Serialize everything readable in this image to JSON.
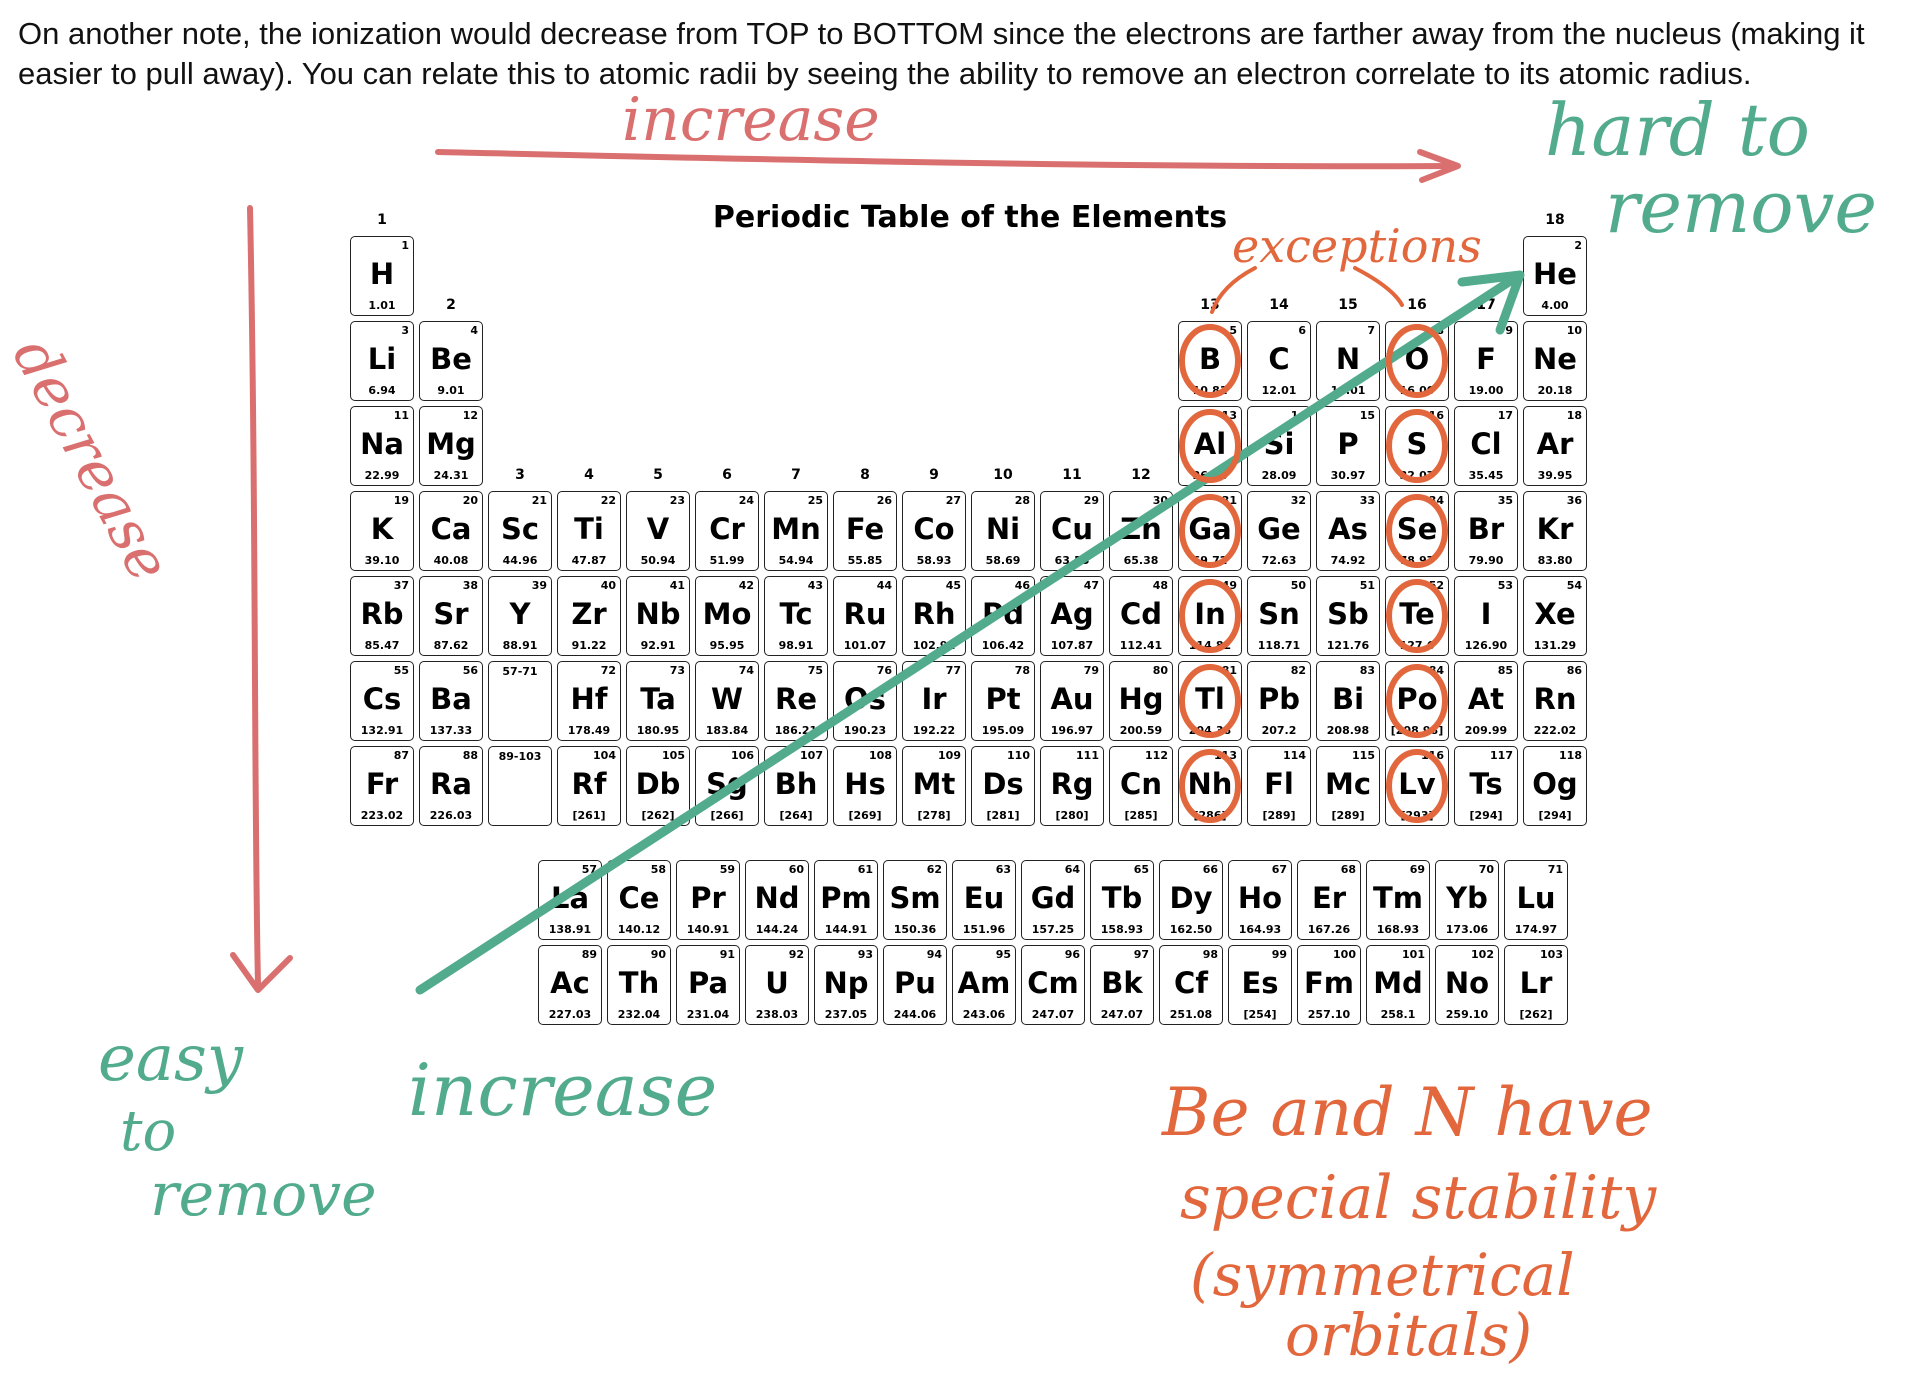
{
  "note": {
    "text": "On another note, the ionization would decrease from TOP to BOTTOM since the electrons are farther away from the nucleus (making it easier to pull away). You can relate this to atomic radii by seeing the ability to remove an electron correlate to its atomic radius."
  },
  "periodic_table": {
    "title": "Periodic Table of the Elements",
    "group_labels": [
      "1",
      "2",
      "3",
      "4",
      "5",
      "6",
      "7",
      "8",
      "9",
      "10",
      "11",
      "12",
      "13",
      "14",
      "15",
      "16",
      "17",
      "18"
    ],
    "main_rows": [
      [
        {
          "n": "1",
          "s": "H",
          "m": "1.01"
        },
        null,
        null,
        null,
        null,
        null,
        null,
        null,
        null,
        null,
        null,
        null,
        null,
        null,
        null,
        null,
        null,
        {
          "n": "2",
          "s": "He",
          "m": "4.00"
        }
      ],
      [
        {
          "n": "3",
          "s": "Li",
          "m": "6.94"
        },
        {
          "n": "4",
          "s": "Be",
          "m": "9.01"
        },
        null,
        null,
        null,
        null,
        null,
        null,
        null,
        null,
        null,
        null,
        {
          "n": "5",
          "s": "B",
          "m": "10.81"
        },
        {
          "n": "6",
          "s": "C",
          "m": "12.01"
        },
        {
          "n": "7",
          "s": "N",
          "m": "14.01"
        },
        {
          "n": "8",
          "s": "O",
          "m": "16.00"
        },
        {
          "n": "9",
          "s": "F",
          "m": "19.00"
        },
        {
          "n": "10",
          "s": "Ne",
          "m": "20.18"
        }
      ],
      [
        {
          "n": "11",
          "s": "Na",
          "m": "22.99"
        },
        {
          "n": "12",
          "s": "Mg",
          "m": "24.31"
        },
        null,
        null,
        null,
        null,
        null,
        null,
        null,
        null,
        null,
        null,
        {
          "n": "13",
          "s": "Al",
          "m": "26.98"
        },
        {
          "n": "14",
          "s": "Si",
          "m": "28.09"
        },
        {
          "n": "15",
          "s": "P",
          "m": "30.97"
        },
        {
          "n": "16",
          "s": "S",
          "m": "32.07"
        },
        {
          "n": "17",
          "s": "Cl",
          "m": "35.45"
        },
        {
          "n": "18",
          "s": "Ar",
          "m": "39.95"
        }
      ],
      [
        {
          "n": "19",
          "s": "K",
          "m": "39.10"
        },
        {
          "n": "20",
          "s": "Ca",
          "m": "40.08"
        },
        {
          "n": "21",
          "s": "Sc",
          "m": "44.96"
        },
        {
          "n": "22",
          "s": "Ti",
          "m": "47.87"
        },
        {
          "n": "23",
          "s": "V",
          "m": "50.94"
        },
        {
          "n": "24",
          "s": "Cr",
          "m": "51.99"
        },
        {
          "n": "25",
          "s": "Mn",
          "m": "54.94"
        },
        {
          "n": "26",
          "s": "Fe",
          "m": "55.85"
        },
        {
          "n": "27",
          "s": "Co",
          "m": "58.93"
        },
        {
          "n": "28",
          "s": "Ni",
          "m": "58.69"
        },
        {
          "n": "29",
          "s": "Cu",
          "m": "63.55"
        },
        {
          "n": "30",
          "s": "Zn",
          "m": "65.38"
        },
        {
          "n": "31",
          "s": "Ga",
          "m": "69.72"
        },
        {
          "n": "32",
          "s": "Ge",
          "m": "72.63"
        },
        {
          "n": "33",
          "s": "As",
          "m": "74.92"
        },
        {
          "n": "34",
          "s": "Se",
          "m": "78.97"
        },
        {
          "n": "35",
          "s": "Br",
          "m": "79.90"
        },
        {
          "n": "36",
          "s": "Kr",
          "m": "83.80"
        }
      ],
      [
        {
          "n": "37",
          "s": "Rb",
          "m": "85.47"
        },
        {
          "n": "38",
          "s": "Sr",
          "m": "87.62"
        },
        {
          "n": "39",
          "s": "Y",
          "m": "88.91"
        },
        {
          "n": "40",
          "s": "Zr",
          "m": "91.22"
        },
        {
          "n": "41",
          "s": "Nb",
          "m": "92.91"
        },
        {
          "n": "42",
          "s": "Mo",
          "m": "95.95"
        },
        {
          "n": "43",
          "s": "Tc",
          "m": "98.91"
        },
        {
          "n": "44",
          "s": "Ru",
          "m": "101.07"
        },
        {
          "n": "45",
          "s": "Rh",
          "m": "102.91"
        },
        {
          "n": "46",
          "s": "Pd",
          "m": "106.42"
        },
        {
          "n": "47",
          "s": "Ag",
          "m": "107.87"
        },
        {
          "n": "48",
          "s": "Cd",
          "m": "112.41"
        },
        {
          "n": "49",
          "s": "In",
          "m": "114.82"
        },
        {
          "n": "50",
          "s": "Sn",
          "m": "118.71"
        },
        {
          "n": "51",
          "s": "Sb",
          "m": "121.76"
        },
        {
          "n": "52",
          "s": "Te",
          "m": "127.6"
        },
        {
          "n": "53",
          "s": "I",
          "m": "126.90"
        },
        {
          "n": "54",
          "s": "Xe",
          "m": "131.29"
        }
      ],
      [
        {
          "n": "55",
          "s": "Cs",
          "m": "132.91"
        },
        {
          "n": "56",
          "s": "Ba",
          "m": "137.33"
        },
        {
          "n": "57-71",
          "s": "",
          "m": "",
          "placeholder": true
        },
        {
          "n": "72",
          "s": "Hf",
          "m": "178.49"
        },
        {
          "n": "73",
          "s": "Ta",
          "m": "180.95"
        },
        {
          "n": "74",
          "s": "W",
          "m": "183.84"
        },
        {
          "n": "75",
          "s": "Re",
          "m": "186.21"
        },
        {
          "n": "76",
          "s": "Os",
          "m": "190.23"
        },
        {
          "n": "77",
          "s": "Ir",
          "m": "192.22"
        },
        {
          "n": "78",
          "s": "Pt",
          "m": "195.09"
        },
        {
          "n": "79",
          "s": "Au",
          "m": "196.97"
        },
        {
          "n": "80",
          "s": "Hg",
          "m": "200.59"
        },
        {
          "n": "81",
          "s": "Tl",
          "m": "204.38"
        },
        {
          "n": "82",
          "s": "Pb",
          "m": "207.2"
        },
        {
          "n": "83",
          "s": "Bi",
          "m": "208.98"
        },
        {
          "n": "84",
          "s": "Po",
          "m": "[208.98]"
        },
        {
          "n": "85",
          "s": "At",
          "m": "209.99"
        },
        {
          "n": "86",
          "s": "Rn",
          "m": "222.02"
        }
      ],
      [
        {
          "n": "87",
          "s": "Fr",
          "m": "223.02"
        },
        {
          "n": "88",
          "s": "Ra",
          "m": "226.03"
        },
        {
          "n": "89-103",
          "s": "",
          "m": "",
          "placeholder": true
        },
        {
          "n": "104",
          "s": "Rf",
          "m": "[261]"
        },
        {
          "n": "105",
          "s": "Db",
          "m": "[262]"
        },
        {
          "n": "106",
          "s": "Sg",
          "m": "[266]"
        },
        {
          "n": "107",
          "s": "Bh",
          "m": "[264]"
        },
        {
          "n": "108",
          "s": "Hs",
          "m": "[269]"
        },
        {
          "n": "109",
          "s": "Mt",
          "m": "[278]"
        },
        {
          "n": "110",
          "s": "Ds",
          "m": "[281]"
        },
        {
          "n": "111",
          "s": "Rg",
          "m": "[280]"
        },
        {
          "n": "112",
          "s": "Cn",
          "m": "[285]"
        },
        {
          "n": "113",
          "s": "Nh",
          "m": "[286]"
        },
        {
          "n": "114",
          "s": "Fl",
          "m": "[289]"
        },
        {
          "n": "115",
          "s": "Mc",
          "m": "[289]"
        },
        {
          "n": "116",
          "s": "Lv",
          "m": "[293]"
        },
        {
          "n": "117",
          "s": "Ts",
          "m": "[294]"
        },
        {
          "n": "118",
          "s": "Og",
          "m": "[294]"
        }
      ]
    ],
    "lanthanides": [
      {
        "n": "57",
        "s": "La",
        "m": "138.91"
      },
      {
        "n": "58",
        "s": "Ce",
        "m": "140.12"
      },
      {
        "n": "59",
        "s": "Pr",
        "m": "140.91"
      },
      {
        "n": "60",
        "s": "Nd",
        "m": "144.24"
      },
      {
        "n": "61",
        "s": "Pm",
        "m": "144.91"
      },
      {
        "n": "62",
        "s": "Sm",
        "m": "150.36"
      },
      {
        "n": "63",
        "s": "Eu",
        "m": "151.96"
      },
      {
        "n": "64",
        "s": "Gd",
        "m": "157.25"
      },
      {
        "n": "65",
        "s": "Tb",
        "m": "158.93"
      },
      {
        "n": "66",
        "s": "Dy",
        "m": "162.50"
      },
      {
        "n": "67",
        "s": "Ho",
        "m": "164.93"
      },
      {
        "n": "68",
        "s": "Er",
        "m": "167.26"
      },
      {
        "n": "69",
        "s": "Tm",
        "m": "168.93"
      },
      {
        "n": "70",
        "s": "Yb",
        "m": "173.06"
      },
      {
        "n": "71",
        "s": "Lu",
        "m": "174.97"
      }
    ],
    "actinides": [
      {
        "n": "89",
        "s": "Ac",
        "m": "227.03"
      },
      {
        "n": "90",
        "s": "Th",
        "m": "232.04"
      },
      {
        "n": "91",
        "s": "Pa",
        "m": "231.04"
      },
      {
        "n": "92",
        "s": "U",
        "m": "238.03"
      },
      {
        "n": "93",
        "s": "Np",
        "m": "237.05"
      },
      {
        "n": "94",
        "s": "Pu",
        "m": "244.06"
      },
      {
        "n": "95",
        "s": "Am",
        "m": "243.06"
      },
      {
        "n": "96",
        "s": "Cm",
        "m": "247.07"
      },
      {
        "n": "97",
        "s": "Bk",
        "m": "247.07"
      },
      {
        "n": "98",
        "s": "Cf",
        "m": "251.08"
      },
      {
        "n": "99",
        "s": "Es",
        "m": "[254]"
      },
      {
        "n": "100",
        "s": "Fm",
        "m": "257.10"
      },
      {
        "n": "101",
        "s": "Md",
        "m": "258.1"
      },
      {
        "n": "102",
        "s": "No",
        "m": "259.10"
      },
      {
        "n": "103",
        "s": "Lr",
        "m": "[262]"
      }
    ]
  },
  "annotations": {
    "increase_top": "increase",
    "hard_to": "hard to",
    "remove_top": "remove",
    "decrease_left": "decrease",
    "exceptions": "exceptions",
    "easy": "easy",
    "to": "to",
    "remove_bottom": "remove",
    "increase_bottom": "increase",
    "be_and_n": "Be and N have",
    "special_stability": "special stability",
    "symmetrical": "(symmetrical",
    "orbitals": "orbitals)",
    "circled_elements": [
      "B",
      "O",
      "Al",
      "S",
      "Ga",
      "Se",
      "In",
      "Te",
      "Tl",
      "Po",
      "Nh",
      "Lv"
    ]
  },
  "colors": {
    "red_ink": "#d9706f",
    "green_ink": "#52ab8d",
    "orange_ink": "#e2673c",
    "text": "#111111",
    "cell_border": "#222222"
  }
}
